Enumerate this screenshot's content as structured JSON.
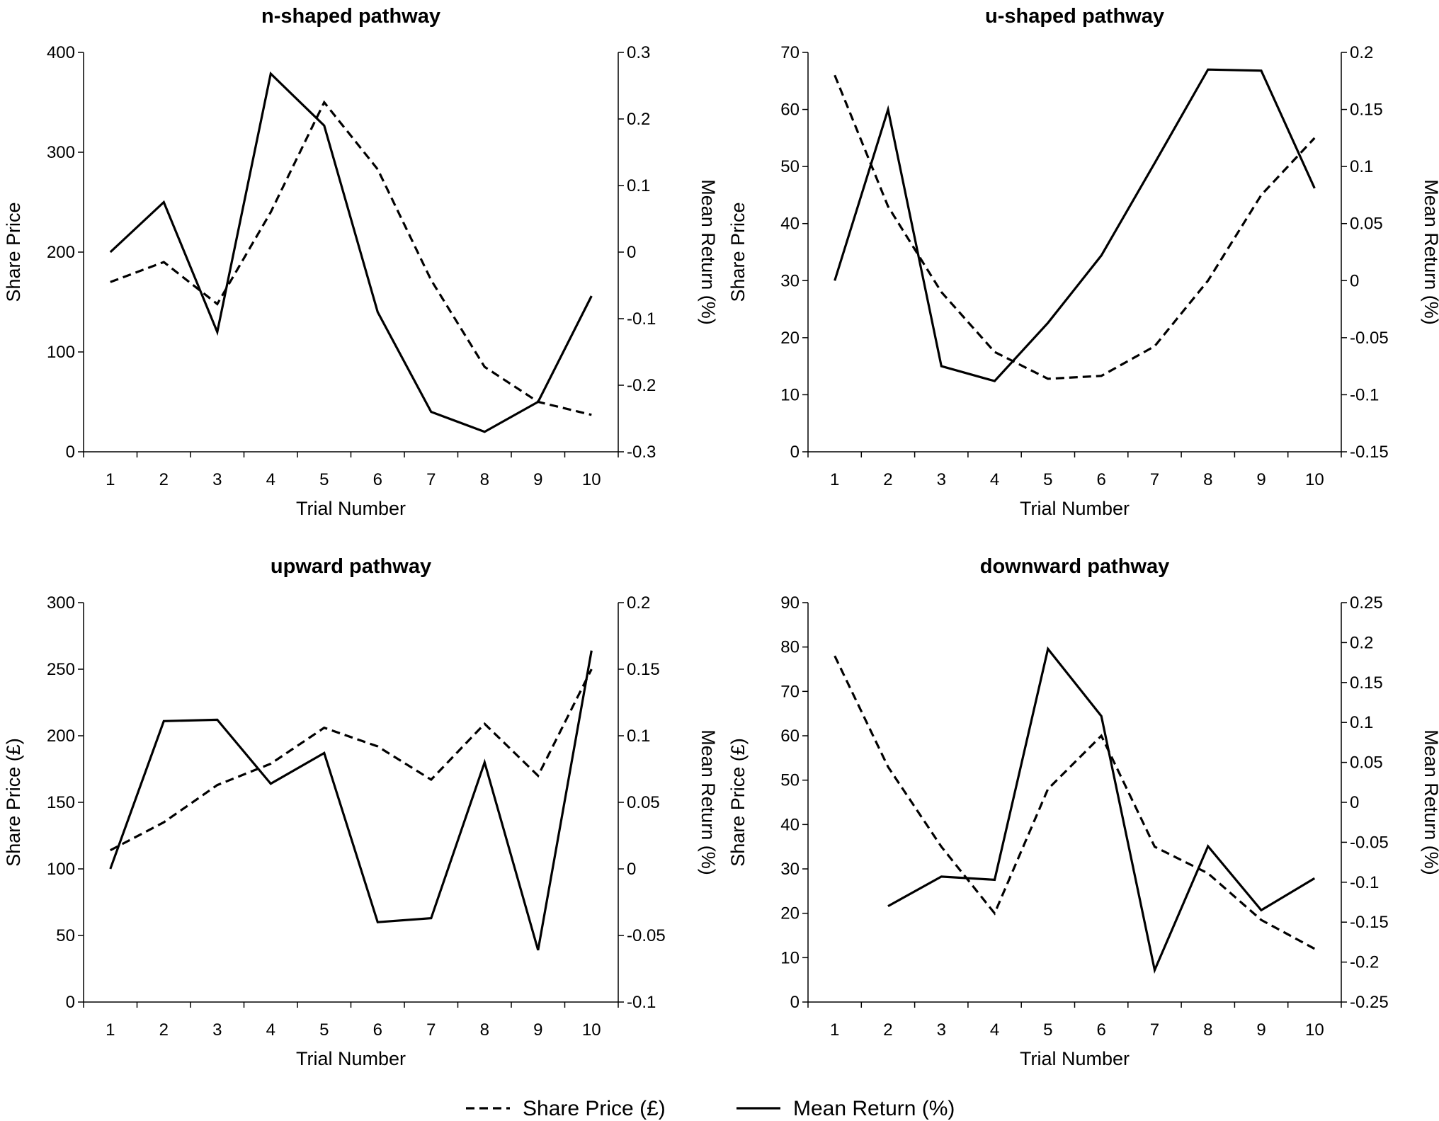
{
  "chart_data": [
    {
      "type": "line",
      "title": "n-shaped pathway",
      "xlabel": "Trial Number",
      "ylabel": "Share Price",
      "y2label": "Mean Return (%)",
      "x": [
        1,
        2,
        3,
        4,
        5,
        6,
        7,
        8,
        9,
        10
      ],
      "ylim": [
        0,
        400
      ],
      "yticks": [
        "0",
        "100",
        "200",
        "300",
        "400"
      ],
      "y2lim": [
        -0.3,
        0.3
      ],
      "y2ticks": [
        "-0.3",
        "-0.2",
        "-0.1",
        "0",
        "0.1",
        "0.2",
        "0.3"
      ],
      "series": [
        {
          "name": "Share Price (£)",
          "axis": "left",
          "style": "dashed",
          "values": [
            170,
            190,
            148,
            240,
            350,
            283,
            172,
            85,
            50,
            37
          ]
        },
        {
          "name": "Mean Return (%)",
          "axis": "right",
          "style": "solid",
          "values": [
            0.0,
            0.075,
            -0.12,
            0.268,
            0.19,
            -0.09,
            -0.24,
            -0.27,
            -0.225,
            -0.066
          ]
        }
      ]
    },
    {
      "type": "line",
      "title": "u-shaped pathway",
      "xlabel": "Trial Number",
      "ylabel": "Share Price",
      "y2label": "Mean Return (%)",
      "x": [
        1,
        2,
        3,
        4,
        5,
        6,
        7,
        8,
        9,
        10
      ],
      "ylim": [
        0,
        70
      ],
      "yticks": [
        "0",
        "10",
        "20",
        "30",
        "40",
        "50",
        "60",
        "70"
      ],
      "y2lim": [
        -0.15,
        0.2
      ],
      "y2ticks": [
        "-0.15",
        "-0.1",
        "-0.05",
        "0",
        "0.05",
        "0.1",
        "0.15",
        "0.2"
      ],
      "series": [
        {
          "name": "Share Price (£)",
          "axis": "left",
          "style": "dashed",
          "values": [
            66,
            43,
            28,
            17.5,
            12.8,
            13.3,
            18.5,
            30,
            45,
            55
          ]
        },
        {
          "name": "Mean Return (%)",
          "axis": "right",
          "style": "solid",
          "values": [
            0.0,
            0.15,
            -0.075,
            -0.088,
            -0.037,
            0.022,
            0.103,
            0.185,
            0.184,
            0.081
          ]
        }
      ]
    },
    {
      "type": "line",
      "title": "upward pathway",
      "xlabel": "Trial Number",
      "ylabel": "Share Price (£)",
      "y2label": "Mean Return (%)",
      "x": [
        1,
        2,
        3,
        4,
        5,
        6,
        7,
        8,
        9,
        10
      ],
      "ylim": [
        0,
        300
      ],
      "yticks": [
        "0",
        "50",
        "100",
        "150",
        "200",
        "250",
        "300"
      ],
      "y2lim": [
        -0.1,
        0.2
      ],
      "y2ticks": [
        "-0.1",
        "-0.05",
        "0",
        "0.05",
        "0.1",
        "0.15",
        "0.2"
      ],
      "series": [
        {
          "name": "Share Price (£)",
          "axis": "left",
          "style": "dashed",
          "values": [
            114,
            135,
            163,
            179,
            206,
            192,
            167,
            209,
            170,
            250
          ]
        },
        {
          "name": "Mean Return (%)",
          "axis": "right",
          "style": "solid",
          "values": [
            0.0,
            0.111,
            0.112,
            0.064,
            0.087,
            -0.04,
            -0.037,
            0.08,
            -0.061,
            0.164
          ]
        }
      ]
    },
    {
      "type": "line",
      "title": "downward pathway",
      "xlabel": "Trial Number",
      "ylabel": "Share Price (£)",
      "y2label": "Mean Return (%)",
      "x": [
        1,
        2,
        3,
        4,
        5,
        6,
        7,
        8,
        9,
        10
      ],
      "ylim": [
        0,
        90
      ],
      "yticks": [
        "0",
        "10",
        "20",
        "30",
        "40",
        "50",
        "60",
        "70",
        "80",
        "90"
      ],
      "y2lim": [
        -0.25,
        0.25
      ],
      "y2ticks": [
        "-0.25",
        "-0.2",
        "-0.15",
        "-0.1",
        "-0.05",
        "0",
        "0.05",
        "0.1",
        "0.15",
        "0.2",
        "0.25"
      ],
      "series": [
        {
          "name": "Share Price (£)",
          "axis": "left",
          "style": "dashed",
          "values": [
            78,
            53,
            35,
            20,
            48,
            60,
            35,
            29,
            18.5,
            12
          ]
        },
        {
          "name": "Mean Return (%)",
          "axis": "right",
          "style": "solid",
          "values": [
            null,
            -0.13,
            -0.093,
            -0.097,
            0.192,
            0.108,
            -0.21,
            -0.055,
            -0.135,
            -0.095
          ]
        }
      ]
    }
  ],
  "legend": [
    {
      "label": "Share Price (£)",
      "style": "dashed"
    },
    {
      "label": "Mean Return (%)",
      "style": "solid"
    }
  ]
}
